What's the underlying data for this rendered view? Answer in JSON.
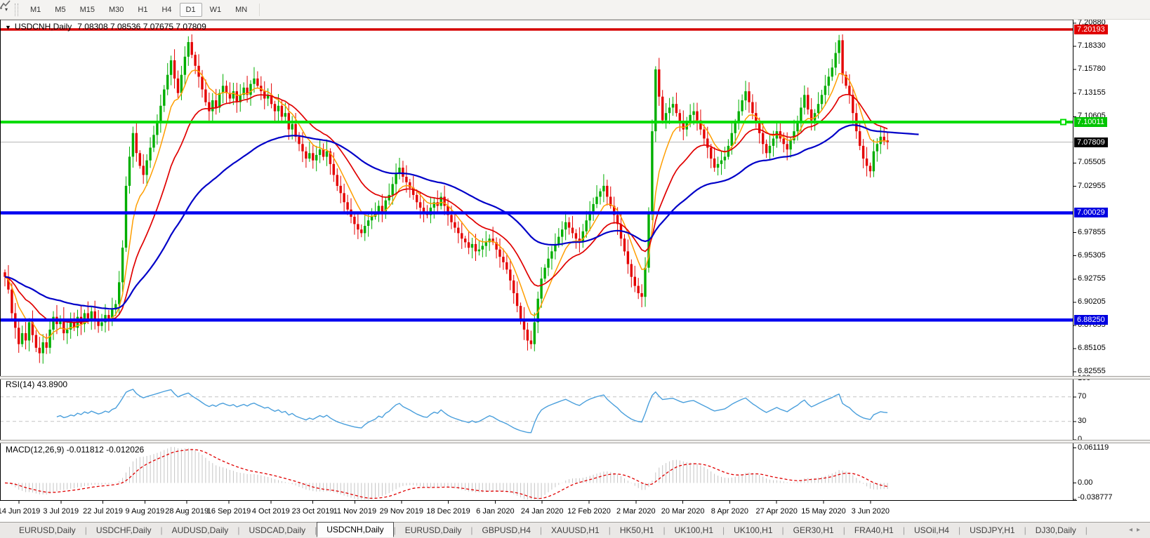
{
  "toolbar": {
    "timeframes": [
      "M1",
      "M5",
      "M15",
      "M30",
      "H1",
      "H4",
      "D1",
      "W1",
      "MN"
    ],
    "active_timeframe": "D1",
    "caret": "▾"
  },
  "header": {
    "collapse_caret": "▼",
    "symbol": "USDCNH,Daily",
    "ohlc": "7.08308 7.08536 7.07675 7.07809"
  },
  "price_axis": {
    "ticks": [
      "7.20880",
      "7.18330",
      "7.15780",
      "7.13155",
      "7.10605",
      "7.05505",
      "7.02955",
      "6.97855",
      "6.95305",
      "6.92755",
      "6.90205",
      "6.87655",
      "6.85105",
      "6.82555"
    ],
    "line_labels": [
      {
        "text": "7.20193",
        "value": 7.20193,
        "bg": "#e00000"
      },
      {
        "text": "7.10011",
        "value": 7.10011,
        "bg": "#00c400"
      },
      {
        "text": "7.07809",
        "value": 7.07809,
        "bg": "#000000"
      },
      {
        "text": "7.00029",
        "value": 7.00029,
        "bg": "#0000e0"
      },
      {
        "text": "6.88250",
        "value": 6.8825,
        "bg": "#0000e0"
      }
    ]
  },
  "rsi_panel": {
    "label": "RSI(14) 43.8900",
    "levels": [
      {
        "text": "100",
        "value": 100,
        "dashed": false
      },
      {
        "text": "70",
        "value": 70,
        "dashed": true
      },
      {
        "text": "30",
        "value": 30,
        "dashed": true
      },
      {
        "text": "0",
        "value": 0,
        "dashed": false
      }
    ]
  },
  "macd_panel": {
    "label": "MACD(12,26,9) -0.011812 -0.012026",
    "axis": [
      {
        "text": "0.061119",
        "value": 0.061119
      },
      {
        "text": "0.00",
        "value": 0.0
      },
      {
        "text": "-0.038777",
        "value": -0.038777
      }
    ]
  },
  "tabs": {
    "items": [
      "EURUSD,Daily",
      "USDCHF,Daily",
      "AUDUSD,Daily",
      "USDCAD,Daily",
      "USDCNH,Daily",
      "EURUSD,Daily",
      "GBPUSD,H4",
      "XAUUSD,H1",
      "HK50,H1",
      "UK100,H1",
      "UK100,H1",
      "GER30,H1",
      "FRA40,H1",
      "USOil,H4",
      "USDJPY,H1",
      "DJ30,Daily"
    ],
    "active_index": 4,
    "scroll_left": "◂",
    "scroll_right": "▸"
  },
  "colors": {
    "bull": "#00ae00",
    "bear": "#e40000",
    "ma_fast": "#ff9e00",
    "ma_mid": "#e00000",
    "ma_slow": "#0000c8",
    "hline_red": "#d60000",
    "hline_green": "#00dc00",
    "hline_blue": "#0000f0",
    "price_line": "#b4b4b4",
    "rsi_line": "#4a9fdc",
    "rsi_level": "#c4c4c4",
    "macd_hist": "#c4c4c4",
    "macd_signal": "#e00000",
    "axis_border": "#000000"
  },
  "chart_data": {
    "type": "candlestick",
    "symbol": "USDCNH",
    "period": "Daily",
    "ohlc_current": {
      "open": 7.08308,
      "high": 7.08536,
      "low": 7.07675,
      "close": 7.07809
    },
    "ylim": [
      6.821,
      7.2127
    ],
    "first_open": 6.935,
    "high_cap": 7.1965,
    "low_cap": 6.8345,
    "closes": [
      6.93,
      6.916,
      6.89,
      6.874,
      6.856,
      6.868,
      6.86,
      6.88,
      6.866,
      6.852,
      6.846,
      6.858,
      6.852,
      6.872,
      6.886,
      6.878,
      6.884,
      6.868,
      6.872,
      6.88,
      6.874,
      6.886,
      6.878,
      6.89,
      6.882,
      6.892,
      6.884,
      6.876,
      6.88,
      6.888,
      6.882,
      6.894,
      6.9,
      6.924,
      6.962,
      7.03,
      7.062,
      7.088,
      7.066,
      7.052,
      7.042,
      7.058,
      7.072,
      7.086,
      7.1,
      7.118,
      7.136,
      7.152,
      7.168,
      7.148,
      7.132,
      7.152,
      7.172,
      7.188,
      7.174,
      7.162,
      7.15,
      7.136,
      7.122,
      7.112,
      7.124,
      7.116,
      7.132,
      7.14,
      7.132,
      7.126,
      7.134,
      7.122,
      7.13,
      7.138,
      7.13,
      7.142,
      7.148,
      7.14,
      7.134,
      7.126,
      7.13,
      7.12,
      7.112,
      7.118,
      7.106,
      7.11,
      7.092,
      7.098,
      7.084,
      7.076,
      7.068,
      7.06,
      7.066,
      7.058,
      7.064,
      7.07,
      7.062,
      7.068,
      7.054,
      7.042,
      7.03,
      7.022,
      7.012,
      7.004,
      6.996,
      6.988,
      6.982,
      6.978,
      6.986,
      6.992,
      6.996,
      7.0,
      7.008,
      7.002,
      7.014,
      7.02,
      7.032,
      7.044,
      7.05,
      7.04,
      7.034,
      7.028,
      7.02,
      7.012,
      7.006,
      7.0,
      6.998,
      7.006,
      7.012,
      7.008,
      7.018,
      7.008,
      6.998,
      6.99,
      6.984,
      6.978,
      6.972,
      6.968,
      6.962,
      6.966,
      6.958,
      6.96,
      6.964,
      6.968,
      6.972,
      6.968,
      6.96,
      6.952,
      6.946,
      6.938,
      6.926,
      6.912,
      6.898,
      6.884,
      6.872,
      6.86,
      6.856,
      6.88,
      6.906,
      6.928,
      6.94,
      6.95,
      6.958,
      6.966,
      6.974,
      6.982,
      6.99,
      6.984,
      6.978,
      6.972,
      6.968,
      6.98,
      6.992,
      7.002,
      7.01,
      7.018,
      7.024,
      7.03,
      7.018,
      7.008,
      6.998,
      6.988,
      6.972,
      6.958,
      6.944,
      6.93,
      6.92,
      6.912,
      6.908,
      6.94,
      7.0,
      7.09,
      7.158,
      7.128,
      7.102,
      7.11,
      7.116,
      7.12,
      7.11,
      7.1,
      7.092,
      7.1,
      7.108,
      7.112,
      7.102,
      7.092,
      7.082,
      7.072,
      7.06,
      7.05,
      7.054,
      7.058,
      7.062,
      7.074,
      7.088,
      7.1,
      7.112,
      7.124,
      7.134,
      7.122,
      7.11,
      7.1,
      7.088,
      7.076,
      7.066,
      7.074,
      7.082,
      7.09,
      7.082,
      7.076,
      7.07,
      7.08,
      7.09,
      7.1,
      7.116,
      7.13,
      7.114,
      7.102,
      7.11,
      7.12,
      7.13,
      7.14,
      7.15,
      7.16,
      7.176,
      7.19,
      7.152,
      7.14,
      7.13,
      7.11,
      7.09,
      7.074,
      7.06,
      7.052,
      7.046,
      7.068,
      7.076,
      7.084,
      7.08,
      7.078
    ],
    "moving_averages": [
      {
        "period": 8,
        "color": "#ff9e00",
        "width": 1.5
      },
      {
        "period": 20,
        "color": "#e00000",
        "width": 1.7
      },
      {
        "period": 55,
        "color": "#0000c8",
        "width": 2.2
      }
    ],
    "horizontal_lines": [
      {
        "value": 7.20193,
        "color": "#d60000",
        "width": 3.5
      },
      {
        "value": 7.10011,
        "color": "#00dc00",
        "width": 4,
        "handle": true
      },
      {
        "value": 7.00029,
        "color": "#0000f0",
        "width": 4.5
      },
      {
        "value": 6.8825,
        "color": "#0000f0",
        "width": 4.5
      }
    ],
    "current_price_line": {
      "value": 7.07809,
      "color": "#b4b4b4"
    },
    "rsi": {
      "period": 14,
      "current": 43.89,
      "range": [
        0,
        100
      ],
      "levels": [
        70,
        30
      ]
    },
    "macd": {
      "fast": 12,
      "slow": 26,
      "signal": 9,
      "current": -0.011812,
      "signal_current": -0.012026,
      "axis_max": 0.061119,
      "axis_min": -0.038777
    },
    "dates": [
      "14 Jun 2019",
      "3 Jul 2019",
      "22 Jul 2019",
      "9 Aug 2019",
      "28 Aug 2019",
      "16 Sep 2019",
      "4 Oct 2019",
      "23 Oct 2019",
      "11 Nov 2019",
      "29 Nov 2019",
      "18 Dec 2019",
      "6 Jan 2020",
      "24 Jan 2020",
      "12 Feb 2020",
      "2 Mar 2020",
      "20 Mar 2020",
      "8 Apr 2020",
      "27 Apr 2020",
      "15 May 2020",
      "3 Jun 2020"
    ]
  }
}
